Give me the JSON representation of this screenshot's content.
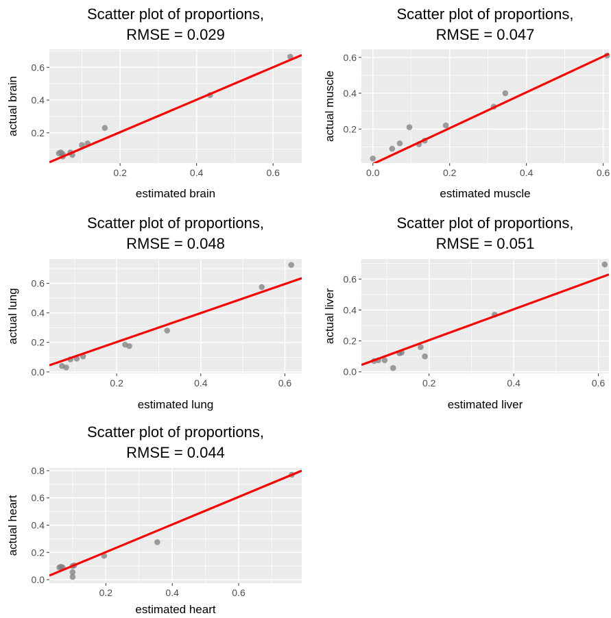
{
  "chart_data": [
    {
      "type": "scatter",
      "title": "Scatter plot of proportions,",
      "subtitle": "RMSE = 0.029",
      "xlabel": "estimated  brain",
      "ylabel": "actual  brain",
      "xlim": [
        0.015,
        0.675
      ],
      "ylim": [
        0.015,
        0.71
      ],
      "xticks": [
        "0.2",
        "0.4",
        "0.6"
      ],
      "xtick_values": [
        0.2,
        0.4,
        0.6
      ],
      "yticks": [
        "0.2",
        "0.4",
        "0.6"
      ],
      "ytick_values": [
        0.2,
        0.4,
        0.6
      ],
      "grid": true,
      "points": [
        [
          0.04,
          0.075
        ],
        [
          0.045,
          0.08
        ],
        [
          0.05,
          0.07
        ],
        [
          0.05,
          0.055
        ],
        [
          0.07,
          0.08
        ],
        [
          0.075,
          0.065
        ],
        [
          0.1,
          0.125
        ],
        [
          0.115,
          0.135
        ],
        [
          0.16,
          0.23
        ],
        [
          0.435,
          0.43
        ],
        [
          0.645,
          0.665
        ]
      ],
      "fit_line": [
        [
          0.015,
          0.02
        ],
        [
          0.675,
          0.675
        ]
      ],
      "point_color": "#7f7f7f",
      "line_color": "#ff0000"
    },
    {
      "type": "scatter",
      "title": "Scatter plot of proportions,",
      "subtitle": "RMSE = 0.047",
      "xlabel": "estimated  muscle",
      "ylabel": "actual  muscle",
      "xlim": [
        -0.03,
        0.615
      ],
      "ylim": [
        0.01,
        0.645
      ],
      "xticks": [
        "0.0",
        "0.2",
        "0.4",
        "0.6"
      ],
      "xtick_values": [
        0.0,
        0.2,
        0.4,
        0.6
      ],
      "yticks": [
        "0.2",
        "0.4",
        "0.6"
      ],
      "ytick_values": [
        0.2,
        0.4,
        0.6
      ],
      "grid": true,
      "points": [
        [
          0.0,
          0.035
        ],
        [
          0.05,
          0.09
        ],
        [
          0.07,
          0.12
        ],
        [
          0.095,
          0.21
        ],
        [
          0.12,
          0.115
        ],
        [
          0.135,
          0.135
        ],
        [
          0.19,
          0.22
        ],
        [
          0.315,
          0.325
        ],
        [
          0.345,
          0.4
        ],
        [
          0.61,
          0.61
        ]
      ],
      "fit_line": [
        [
          -0.03,
          -0.025
        ],
        [
          0.615,
          0.62
        ]
      ],
      "point_color": "#7f7f7f",
      "line_color": "#ff0000"
    },
    {
      "type": "scatter",
      "title": "Scatter plot of proportions,",
      "subtitle": "RMSE = 0.048",
      "xlabel": "estimated  lung",
      "ylabel": "actual  lung",
      "xlim": [
        0.04,
        0.64
      ],
      "ylim": [
        -0.01,
        0.765
      ],
      "xticks": [
        "0.2",
        "0.4",
        "0.6"
      ],
      "xtick_values": [
        0.2,
        0.4,
        0.6
      ],
      "yticks": [
        "0.0",
        "0.2",
        "0.4",
        "0.6"
      ],
      "ytick_values": [
        0.0,
        0.2,
        0.4,
        0.6
      ],
      "grid": true,
      "points": [
        [
          0.07,
          0.04
        ],
        [
          0.08,
          0.03
        ],
        [
          0.09,
          0.085
        ],
        [
          0.105,
          0.09
        ],
        [
          0.12,
          0.105
        ],
        [
          0.22,
          0.185
        ],
        [
          0.23,
          0.175
        ],
        [
          0.32,
          0.28
        ],
        [
          0.545,
          0.575
        ],
        [
          0.615,
          0.725
        ]
      ],
      "fit_line": [
        [
          0.04,
          0.045
        ],
        [
          0.64,
          0.635
        ]
      ],
      "point_color": "#7f7f7f",
      "line_color": "#ff0000"
    },
    {
      "type": "scatter",
      "title": "Scatter plot of proportions,",
      "subtitle": "RMSE = 0.051",
      "xlabel": "estimated  liver",
      "ylabel": "actual  liver",
      "xlim": [
        0.04,
        0.625
      ],
      "ylim": [
        -0.01,
        0.73
      ],
      "xticks": [
        "0.2",
        "0.4",
        "0.6"
      ],
      "xtick_values": [
        0.2,
        0.4,
        0.6
      ],
      "yticks": [
        "0.0",
        "0.2",
        "0.4",
        "0.6"
      ],
      "ytick_values": [
        0.0,
        0.2,
        0.4,
        0.6
      ],
      "grid": true,
      "points": [
        [
          0.07,
          0.07
        ],
        [
          0.08,
          0.075
        ],
        [
          0.095,
          0.075
        ],
        [
          0.115,
          0.025
        ],
        [
          0.13,
          0.12
        ],
        [
          0.135,
          0.125
        ],
        [
          0.18,
          0.16
        ],
        [
          0.19,
          0.1
        ],
        [
          0.355,
          0.37
        ],
        [
          0.615,
          0.695
        ]
      ],
      "fit_line": [
        [
          0.04,
          0.045
        ],
        [
          0.625,
          0.63
        ]
      ],
      "point_color": "#7f7f7f",
      "line_color": "#ff0000"
    },
    {
      "type": "scatter",
      "title": "Scatter plot of proportions,",
      "subtitle": "RMSE = 0.044",
      "xlabel": "estimated  heart",
      "ylabel": "actual  heart",
      "xlim": [
        0.03,
        0.79
      ],
      "ylim": [
        -0.025,
        0.82
      ],
      "xticks": [
        "0.2",
        "0.4",
        "0.6"
      ],
      "xtick_values": [
        0.2,
        0.4,
        0.6
      ],
      "yticks": [
        "0.0",
        "0.2",
        "0.4",
        "0.6",
        "0.8"
      ],
      "ytick_values": [
        0.0,
        0.2,
        0.4,
        0.6,
        0.8
      ],
      "grid": true,
      "points": [
        [
          0.06,
          0.09
        ],
        [
          0.065,
          0.095
        ],
        [
          0.07,
          0.09
        ],
        [
          0.1,
          0.1
        ],
        [
          0.1,
          0.055
        ],
        [
          0.1,
          0.02
        ],
        [
          0.105,
          0.105
        ],
        [
          0.195,
          0.175
        ],
        [
          0.355,
          0.275
        ],
        [
          0.76,
          0.77
        ]
      ],
      "fit_line": [
        [
          0.03,
          0.03
        ],
        [
          0.79,
          0.8
        ]
      ],
      "point_color": "#7f7f7f",
      "line_color": "#ff0000"
    }
  ]
}
